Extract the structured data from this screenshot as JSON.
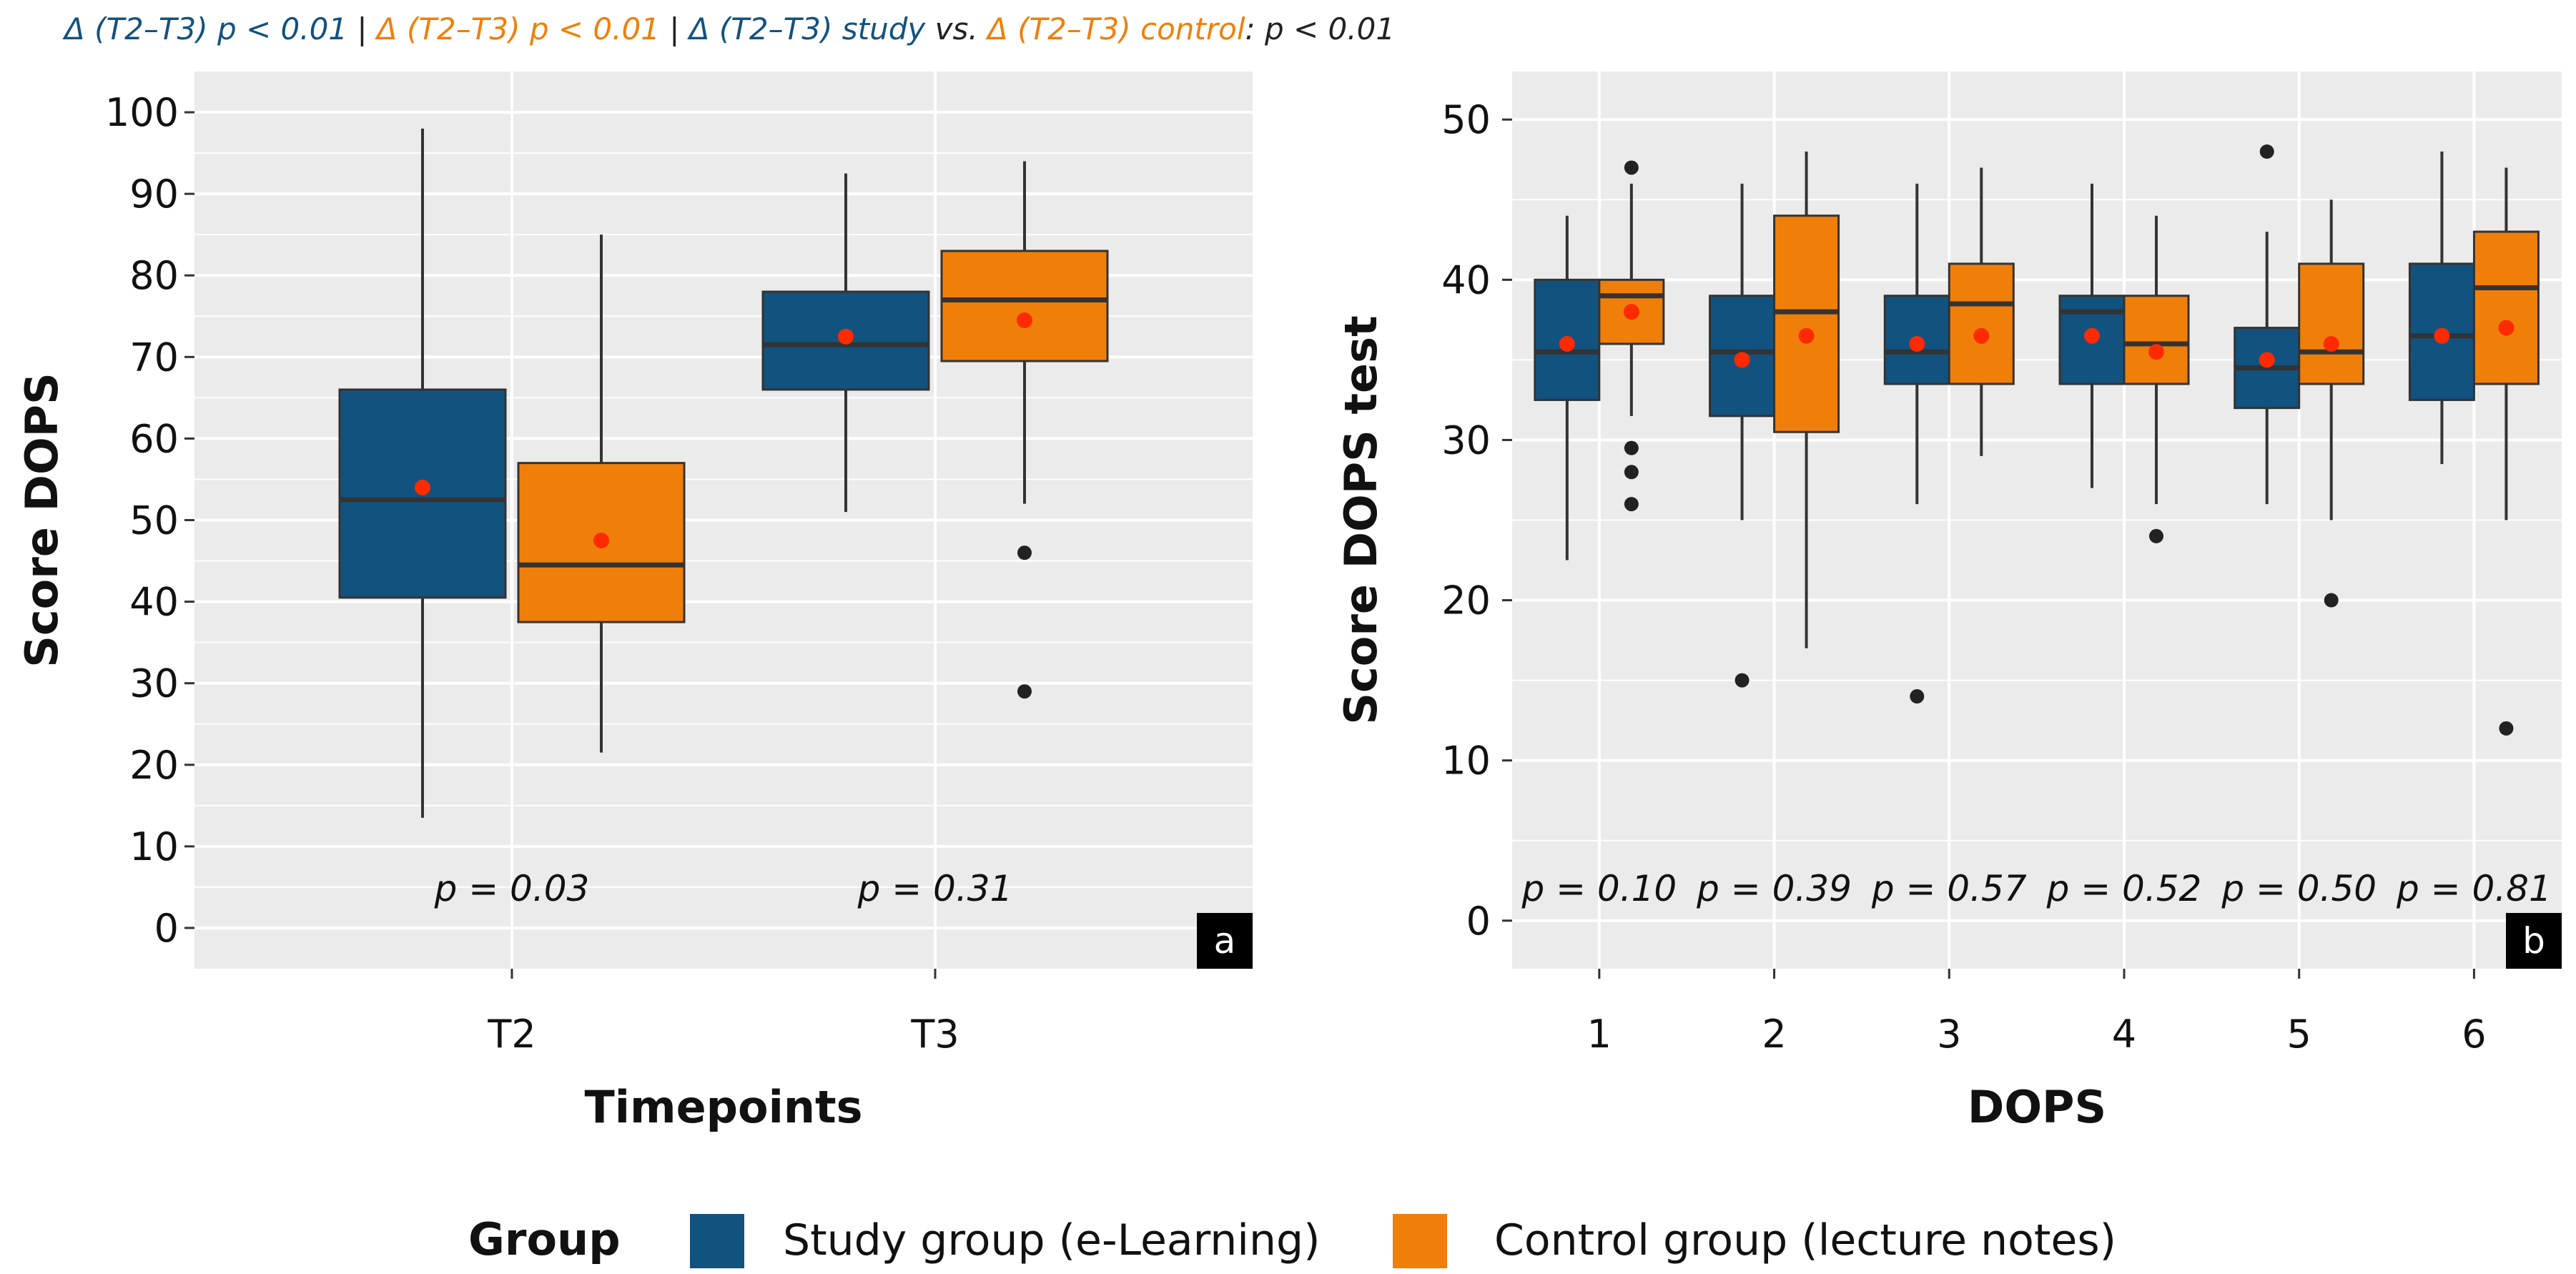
{
  "colors": {
    "study": "#12527f",
    "control": "#f07f09",
    "mean_dot": "#ff2a00",
    "panel_bg": "#ebebeb",
    "grid": "#ffffff",
    "ink": "#333333"
  },
  "header": {
    "segments": [
      {
        "text": "Δ (T2–T3) p < 0.01",
        "group": "study"
      },
      {
        "text": " | ",
        "group": "ink"
      },
      {
        "text": "Δ (T2–T3) p < 0.01",
        "group": "control"
      },
      {
        "text": " | ",
        "group": "ink"
      },
      {
        "text": "Δ (T2–T3) study",
        "group": "study"
      },
      {
        "text": " vs. ",
        "group": "ink"
      },
      {
        "text": "Δ (T2–T3) control",
        "group": "control"
      },
      {
        "text": ": p < 0.01",
        "group": "ink"
      }
    ]
  },
  "legend": {
    "title": "Group",
    "items": [
      {
        "label": "Study group (e-Learning)",
        "group": "study"
      },
      {
        "label": "Control group (lecture notes)",
        "group": "control"
      }
    ]
  },
  "chart_data": [
    {
      "type": "box",
      "panel_label": "a",
      "xlabel": "Timepoints",
      "ylabel": "Score DOPS",
      "ylim": [
        -5,
        105
      ],
      "yticks": [
        0,
        10,
        20,
        30,
        40,
        50,
        60,
        70,
        80,
        90,
        100
      ],
      "categories": [
        "T2",
        "T3"
      ],
      "p_values": [
        "p = 0.03",
        "p = 0.31"
      ],
      "series": [
        {
          "name": "Study group (e-Learning)",
          "group": "study",
          "boxes": [
            {
              "min": 13.5,
              "q1": 40.5,
              "median": 52.5,
              "q3": 66,
              "max": 98,
              "mean": 54,
              "outliers": []
            },
            {
              "min": 51,
              "q1": 66,
              "median": 71.5,
              "q3": 78,
              "max": 92.5,
              "mean": 72.5,
              "outliers": []
            }
          ]
        },
        {
          "name": "Control group (lecture notes)",
          "group": "control",
          "boxes": [
            {
              "min": 21.5,
              "q1": 37.5,
              "median": 44.5,
              "q3": 57,
              "max": 85,
              "mean": 47.5,
              "outliers": []
            },
            {
              "min": 52,
              "q1": 69.5,
              "median": 77,
              "q3": 83,
              "max": 94,
              "mean": 74.5,
              "outliers": [
                46,
                29
              ]
            }
          ]
        }
      ]
    },
    {
      "type": "box",
      "panel_label": "b",
      "xlabel": "DOPS",
      "ylabel": "Score DOPS test",
      "ylim": [
        -3,
        53
      ],
      "yticks": [
        0,
        10,
        20,
        30,
        40,
        50
      ],
      "categories": [
        "1",
        "2",
        "3",
        "4",
        "5",
        "6"
      ],
      "p_values": [
        "p = 0.10",
        "p = 0.39",
        "p = 0.57",
        "p = 0.52",
        "p = 0.50",
        "p = 0.81"
      ],
      "series": [
        {
          "name": "Study group (e-Learning)",
          "group": "study",
          "boxes": [
            {
              "min": 22.5,
              "q1": 32.5,
              "median": 35.5,
              "q3": 40,
              "max": 44,
              "mean": 36,
              "outliers": []
            },
            {
              "min": 25,
              "q1": 31.5,
              "median": 35.5,
              "q3": 39,
              "max": 46,
              "mean": 35,
              "outliers": [
                15
              ]
            },
            {
              "min": 26,
              "q1": 33.5,
              "median": 35.5,
              "q3": 39,
              "max": 46,
              "mean": 36,
              "outliers": [
                14
              ]
            },
            {
              "min": 27,
              "q1": 33.5,
              "median": 38,
              "q3": 39,
              "max": 46,
              "mean": 36.5,
              "outliers": []
            },
            {
              "min": 26,
              "q1": 32,
              "median": 34.5,
              "q3": 37,
              "max": 43,
              "mean": 35,
              "outliers": [
                48
              ]
            },
            {
              "min": 28.5,
              "q1": 32.5,
              "median": 36.5,
              "q3": 41,
              "max": 48,
              "mean": 36.5,
              "outliers": []
            }
          ]
        },
        {
          "name": "Control group (lecture notes)",
          "group": "control",
          "boxes": [
            {
              "min": 31.5,
              "q1": 36,
              "median": 39,
              "q3": 40,
              "max": 46,
              "mean": 38,
              "outliers": [
                47,
                29.5,
                28,
                26
              ]
            },
            {
              "min": 17,
              "q1": 30.5,
              "median": 38,
              "q3": 44,
              "max": 48,
              "mean": 36.5,
              "outliers": []
            },
            {
              "min": 29,
              "q1": 33.5,
              "median": 38.5,
              "q3": 41,
              "max": 47,
              "mean": 36.5,
              "outliers": []
            },
            {
              "min": 26,
              "q1": 33.5,
              "median": 36,
              "q3": 39,
              "max": 44,
              "mean": 35.5,
              "outliers": [
                24
              ]
            },
            {
              "min": 25,
              "q1": 33.5,
              "median": 35.5,
              "q3": 41,
              "max": 45,
              "mean": 36,
              "outliers": [
                20
              ]
            },
            {
              "min": 25,
              "q1": 33.5,
              "median": 39.5,
              "q3": 43,
              "max": 47,
              "mean": 37,
              "outliers": [
                12
              ]
            }
          ]
        }
      ]
    }
  ]
}
